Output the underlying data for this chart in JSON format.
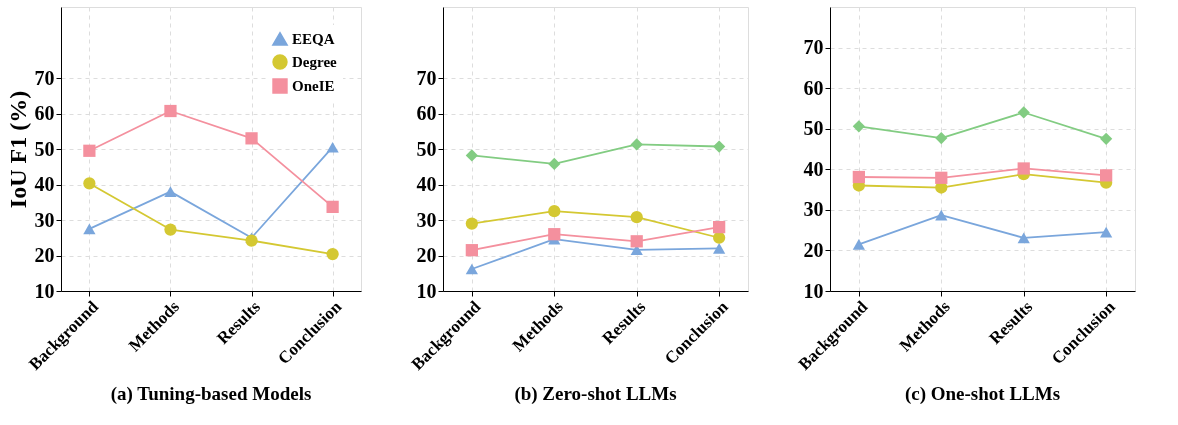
{
  "chart_data": [
    {
      "type": "line",
      "title": "(a) Tuning-based Models",
      "ylabel": "IoU F1 (%)",
      "categories": [
        "Background",
        "Methods",
        "Results",
        "Conclusion"
      ],
      "ylim": [
        10,
        90
      ],
      "yticks": [
        10,
        20,
        30,
        40,
        50,
        60,
        70
      ],
      "grid": true,
      "legend": "top right",
      "series": [
        {
          "name": "EEQA",
          "color": "#7aa6dc",
          "marker": "triangle",
          "values": [
            27.5,
            38,
            25,
            50.5
          ]
        },
        {
          "name": "Degree",
          "color": "#d4c832",
          "marker": "circle",
          "values": [
            40.3,
            27.3,
            24.2,
            20.4
          ]
        },
        {
          "name": "OneIE",
          "color": "#f4909e",
          "marker": "square",
          "values": [
            49.5,
            60.7,
            53,
            33.7
          ]
        }
      ]
    },
    {
      "type": "line",
      "title": "(b) Zero-shot LLMs",
      "categories": [
        "Background",
        "Methods",
        "Results",
        "Conclusion"
      ],
      "ylim": [
        10,
        90
      ],
      "yticks": [
        10,
        20,
        30,
        40,
        50,
        60,
        70
      ],
      "grid": true,
      "series": [
        {
          "color": "#7aa6dc",
          "marker": "triangle",
          "values": [
            16.2,
            24.6,
            21.6,
            22
          ]
        },
        {
          "color": "#d4c832",
          "marker": "circle",
          "values": [
            29,
            32.5,
            30.8,
            25
          ]
        },
        {
          "color": "#f4909e",
          "marker": "square",
          "values": [
            21.5,
            26,
            24,
            28
          ]
        },
        {
          "color": "#82cc82",
          "marker": "diamond",
          "values": [
            48.2,
            45.8,
            51.3,
            50.7
          ]
        }
      ]
    },
    {
      "type": "line",
      "title": "(c) One-shot LLMs",
      "categories": [
        "Background",
        "Methods",
        "Results",
        "Conclusion"
      ],
      "ylim": [
        10,
        80
      ],
      "yticks": [
        10,
        20,
        30,
        40,
        50,
        60,
        70
      ],
      "grid": true,
      "series": [
        {
          "color": "#7aa6dc",
          "marker": "triangle",
          "values": [
            21.5,
            28.7,
            23.1,
            24.5
          ]
        },
        {
          "color": "#d4c832",
          "marker": "circle",
          "values": [
            36,
            35.5,
            38.8,
            36.7
          ]
        },
        {
          "color": "#f4909e",
          "marker": "square",
          "values": [
            38.1,
            37.9,
            40.2,
            38.5
          ]
        },
        {
          "color": "#82cc82",
          "marker": "diamond",
          "values": [
            50.6,
            47.7,
            54,
            47.5
          ]
        }
      ]
    }
  ]
}
